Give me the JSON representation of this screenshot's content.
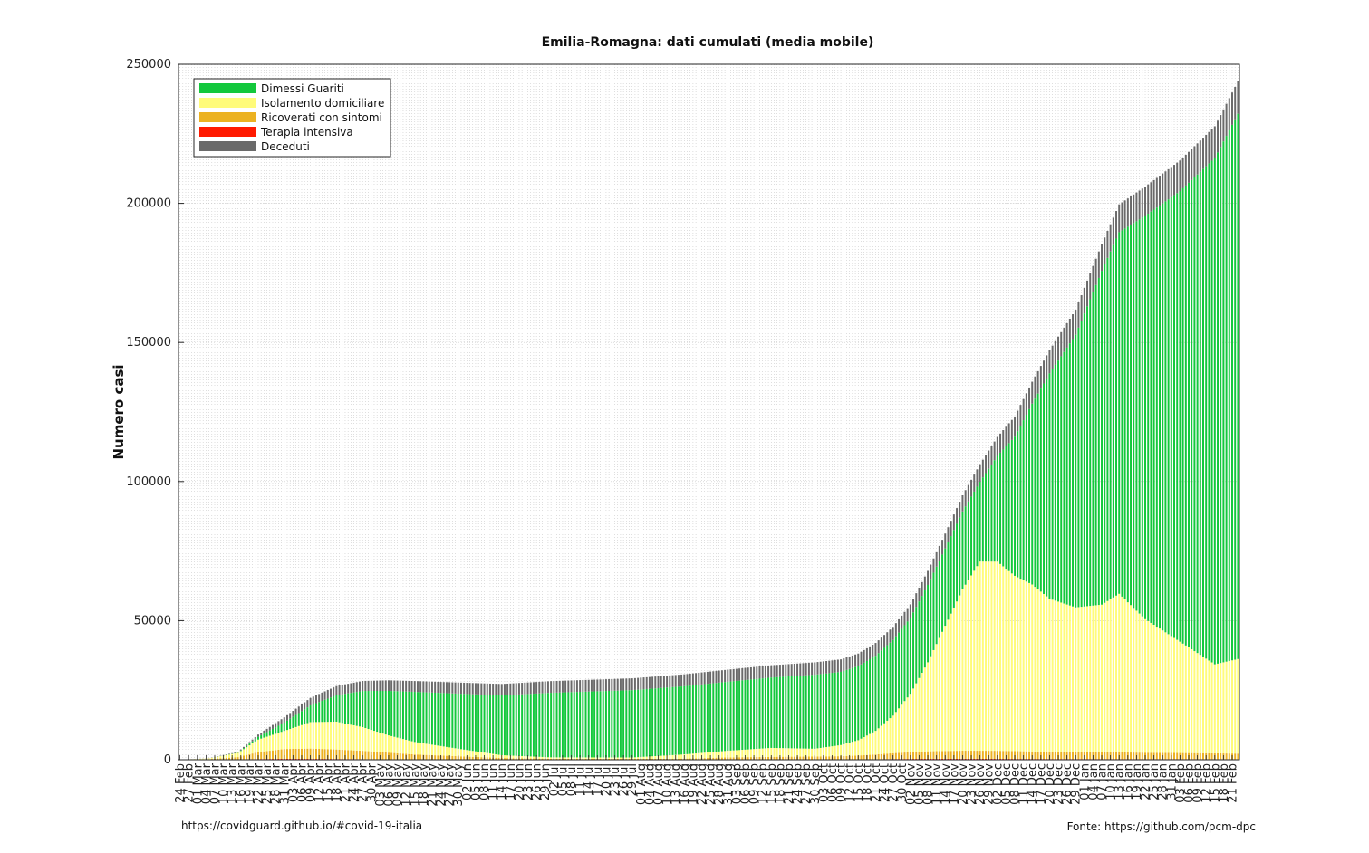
{
  "chart_data": {
    "type": "bar",
    "stacked": true,
    "title": "Emilia-Romagna: dati cumulati (media mobile)",
    "ylabel": "Numero casi",
    "xlabel": "",
    "ylim": [
      0,
      250000
    ],
    "yticks": [
      "0",
      "50000",
      "100000",
      "150000",
      "200000",
      "250000"
    ],
    "ytick_values": [
      0,
      50000,
      100000,
      150000,
      200000,
      250000
    ],
    "grid": true,
    "legend_position": "top-left",
    "start_date": "2020-02-24",
    "end_date": "2021-02-23",
    "x_tick_labels": [
      "24 Feb",
      "27 Feb",
      "01 Mar",
      "04 Mar",
      "07 Mar",
      "10 Mar",
      "13 Mar",
      "16 Mar",
      "19 Mar",
      "22 Mar",
      "25 Mar",
      "28 Mar",
      "31 Mar",
      "03 Apr",
      "06 Apr",
      "09 Apr",
      "12 Apr",
      "15 Apr",
      "18 Apr",
      "21 Apr",
      "24 Apr",
      "27 Apr",
      "30 Apr",
      "03 May",
      "06 May",
      "09 May",
      "12 May",
      "15 May",
      "18 May",
      "21 May",
      "24 May",
      "27 May",
      "30 May",
      "02 Jun",
      "05 Jun",
      "08 Jun",
      "11 Jun",
      "14 Jun",
      "17 Jun",
      "20 Jun",
      "23 Jun",
      "26 Jun",
      "29 Jun",
      "02 Jul",
      "05 Jul",
      "08 Jul",
      "11 Jul",
      "14 Jul",
      "17 Jul",
      "20 Jul",
      "23 Jul",
      "26 Jul",
      "29 Jul",
      "01 Aug",
      "04 Aug",
      "07 Aug",
      "10 Aug",
      "13 Aug",
      "16 Aug",
      "19 Aug",
      "22 Aug",
      "25 Aug",
      "28 Aug",
      "31 Aug",
      "03 Sep",
      "06 Sep",
      "09 Sep",
      "12 Sep",
      "15 Sep",
      "18 Sep",
      "21 Sep",
      "24 Sep",
      "27 Sep",
      "30 Sep",
      "03 Oct",
      "06 Oct",
      "09 Oct",
      "12 Oct",
      "15 Oct",
      "18 Oct",
      "21 Oct",
      "24 Oct",
      "27 Oct",
      "30 Oct",
      "02 Nov",
      "05 Nov",
      "08 Nov",
      "11 Nov",
      "14 Nov",
      "17 Nov",
      "20 Nov",
      "23 Nov",
      "26 Nov",
      "29 Nov",
      "02 Dec",
      "05 Dec",
      "08 Dec",
      "11 Dec",
      "14 Dec",
      "17 Dec",
      "20 Dec",
      "23 Dec",
      "26 Dec",
      "29 Dec",
      "01 Jan",
      "04 Jan",
      "07 Jan",
      "10 Jan",
      "13 Jan",
      "16 Jan",
      "19 Jan",
      "22 Jan",
      "25 Jan",
      "28 Jan",
      "31 Jan",
      "03 Feb",
      "06 Feb",
      "09 Feb",
      "12 Feb",
      "15 Feb",
      "18 Feb",
      "21 Feb"
    ],
    "series": [
      {
        "name": "Dimessi Guariti",
        "color": "#13c83c"
      },
      {
        "name": "Isolamento domiciliare",
        "color": "#fffb7a"
      },
      {
        "name": "Ricoverati con sintomi",
        "color": "#ecb221"
      },
      {
        "name": "Terapia intensiva",
        "color": "#ff1a00"
      },
      {
        "name": "Deceduti",
        "color": "#6a6a6a"
      }
    ],
    "stack_order_bottom_to_top": [
      "Terapia intensiva",
      "Ricoverati con sintomi",
      "Isolamento domiciliare",
      "Dimessi Guariti",
      "Deceduti"
    ],
    "anchor_dates": [
      "2020-02-24",
      "2020-03-05",
      "2020-03-15",
      "2020-03-22",
      "2020-03-31",
      "2020-04-09",
      "2020-04-18",
      "2020-04-27",
      "2020-05-06",
      "2020-05-15",
      "2020-05-30",
      "2020-06-14",
      "2020-07-01",
      "2020-07-29",
      "2020-08-16",
      "2020-08-31",
      "2020-09-15",
      "2020-09-30",
      "2020-10-09",
      "2020-10-15",
      "2020-10-21",
      "2020-10-27",
      "2020-11-02",
      "2020-11-08",
      "2020-11-14",
      "2020-11-20",
      "2020-11-26",
      "2020-12-02",
      "2020-12-08",
      "2020-12-14",
      "2020-12-20",
      "2020-12-29",
      "2021-01-07",
      "2021-01-13",
      "2021-01-22",
      "2021-02-03",
      "2021-02-15",
      "2021-02-23"
    ],
    "values": {
      "Terapia intensiva": [
        0,
        30,
        150,
        250,
        350,
        320,
        280,
        220,
        150,
        90,
        60,
        30,
        15,
        12,
        15,
        35,
        50,
        55,
        80,
        120,
        180,
        250,
        300,
        330,
        350,
        350,
        340,
        320,
        300,
        290,
        270,
        260,
        250,
        240,
        230,
        220,
        210,
        200
      ],
      "Ricoverati con sintomi": [
        0,
        200,
        800,
        2500,
        3500,
        3700,
        3400,
        3000,
        2400,
        1800,
        1200,
        600,
        350,
        300,
        400,
        800,
        1000,
        1100,
        1200,
        1400,
        1700,
        2100,
        2400,
        2700,
        2800,
        2900,
        2900,
        2900,
        2800,
        2700,
        2600,
        2500,
        2500,
        2400,
        2300,
        2200,
        2100,
        2000
      ],
      "Isolamento domiciliare": [
        0,
        300,
        1500,
        4500,
        6500,
        9500,
        10000,
        8500,
        6200,
        4500,
        2700,
        1000,
        500,
        500,
        1500,
        2400,
        3200,
        2800,
        4000,
        5500,
        8500,
        13500,
        21000,
        32000,
        45000,
        58000,
        68000,
        68000,
        63000,
        60000,
        55000,
        52000,
        53000,
        57000,
        48000,
        40000,
        32000,
        34000
      ],
      "Dimessi Guariti": [
        0,
        0,
        100,
        1000,
        3000,
        6000,
        9500,
        13000,
        16000,
        18000,
        19800,
        21500,
        23200,
        24200,
        24500,
        24800,
        25300,
        26600,
        26300,
        26600,
        27000,
        27200,
        27300,
        27800,
        27800,
        28000,
        28700,
        38000,
        50000,
        65000,
        81000,
        98000,
        120000,
        130000,
        145000,
        162000,
        182000,
        196000
      ],
      "Deceduti": [
        0,
        50,
        250,
        800,
        1900,
        2700,
        3300,
        3600,
        3800,
        3900,
        4000,
        4100,
        4200,
        4250,
        4300,
        4350,
        4400,
        4450,
        4500,
        4550,
        4600,
        4700,
        4850,
        5050,
        5350,
        5800,
        6300,
        6800,
        7300,
        7900,
        8400,
        9000,
        9600,
        10000,
        10500,
        11000,
        11400,
        11700
      ]
    }
  },
  "footer": {
    "left": "https://covidguard.github.io/#covid-19-italia",
    "right": "Fonte: https://github.com/pcm-dpc"
  }
}
